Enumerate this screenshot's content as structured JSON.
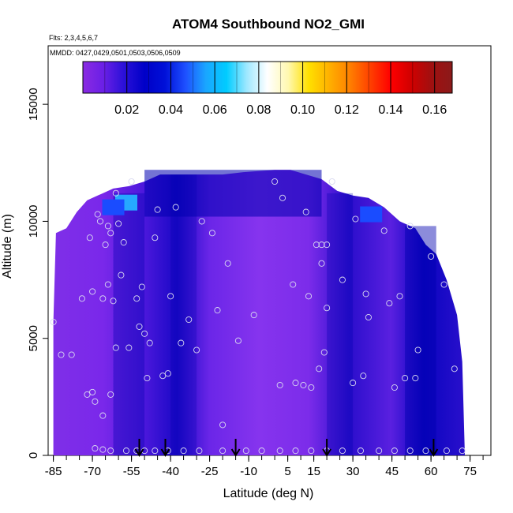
{
  "chart_data": {
    "type": "heatmap",
    "title": "ATOM4 Southbound NO2_GMI",
    "flights_note": "Flts: 2,3,4,5,6,7",
    "dates_note": "MMDD: 0427,0429,0501,0503,0506,0509",
    "xlabel": "Latitude (deg N)",
    "ylabel": "Altitude (m)",
    "xlim": [
      -87,
      83
    ],
    "ylim": [
      0,
      17500
    ],
    "x_ticks": [
      -85,
      -70,
      -55,
      -40,
      -25,
      -10,
      5,
      15,
      30,
      45,
      60,
      75
    ],
    "x_tick_labels": [
      "-85",
      "-70",
      "-55",
      "-40",
      "-25",
      "-10",
      "5",
      "15",
      "30",
      "45",
      "60",
      "75"
    ],
    "y_ticks": [
      0,
      5000,
      10000,
      15000
    ],
    "y_tick_labels": [
      "0",
      "5000",
      "10000",
      "15000"
    ],
    "colorbar": {
      "min": 0.0,
      "max": 0.168,
      "ticks": [
        0.02,
        0.04,
        0.06,
        0.08,
        0.1,
        0.12,
        0.14,
        0.16
      ],
      "tick_labels": [
        "0.02",
        "0.04",
        "0.06",
        "0.08",
        "0.10",
        "0.12",
        "0.14",
        "0.16"
      ],
      "colors": [
        "#8a2be2",
        "#6a1fe6",
        "#2a10d8",
        "#0000c8",
        "#0010d8",
        "#1e50ff",
        "#1aa6ff",
        "#00ccff",
        "#a0e8ff",
        "#ffffff",
        "#fff8b0",
        "#ffe000",
        "#ffb000",
        "#ff8000",
        "#ff4000",
        "#ff0000",
        "#d00000",
        "#a01010",
        "#8b1a1a"
      ]
    },
    "domain_top_altitude": [
      [
        -85,
        5700
      ],
      [
        -84,
        9500
      ],
      [
        -80,
        9700
      ],
      [
        -76,
        10400
      ],
      [
        -72,
        10900
      ],
      [
        -68,
        11100
      ],
      [
        -62,
        11400
      ],
      [
        -56,
        11500
      ],
      [
        -50,
        11700
      ],
      [
        -44,
        12000
      ],
      [
        -36,
        12000
      ],
      [
        -20,
        12000
      ],
      [
        -12,
        12100
      ],
      [
        0,
        12200
      ],
      [
        6,
        12200
      ],
      [
        12,
        12000
      ],
      [
        18,
        11800
      ],
      [
        24,
        11300
      ],
      [
        30,
        11100
      ],
      [
        36,
        11000
      ],
      [
        42,
        10600
      ],
      [
        48,
        10000
      ],
      [
        54,
        9700
      ],
      [
        58,
        9000
      ],
      [
        62,
        8600
      ],
      [
        66,
        7500
      ],
      [
        70,
        6000
      ],
      [
        72,
        4000
      ],
      [
        73,
        0
      ]
    ],
    "high_regions": [
      {
        "lat": -57,
        "alt": 10800,
        "value": 0.05
      },
      {
        "lat": -62,
        "alt": 10600,
        "value": 0.035
      },
      {
        "lat": 37,
        "alt": 10300,
        "value": 0.04
      }
    ],
    "flight_track_points": [
      [
        -85,
        5700
      ],
      [
        -82,
        4300
      ],
      [
        -74,
        6700
      ],
      [
        -71,
        9300
      ],
      [
        -70,
        7000
      ],
      [
        -68,
        10300
      ],
      [
        -67,
        10000
      ],
      [
        -66,
        6700
      ],
      [
        -65,
        9000
      ],
      [
        -64,
        9800
      ],
      [
        -63,
        9500
      ],
      [
        -64,
        7300
      ],
      [
        -62,
        6600
      ],
      [
        -61,
        11200
      ],
      [
        -60,
        9900
      ],
      [
        -59,
        7700
      ],
      [
        -58,
        9100
      ],
      [
        -55,
        11700
      ],
      [
        -53,
        6700
      ],
      [
        -52,
        5500
      ],
      [
        -51,
        7200
      ],
      [
        -49,
        3300
      ],
      [
        -48,
        4800
      ],
      [
        -46,
        9300
      ],
      [
        -45,
        10500
      ],
      [
        -43,
        3400
      ],
      [
        -40,
        6800
      ],
      [
        -38,
        10600
      ],
      [
        -36,
        4800
      ],
      [
        -33,
        5800
      ],
      [
        -30,
        4500
      ],
      [
        -28,
        10000
      ],
      [
        -24,
        9500
      ],
      [
        -22,
        6200
      ],
      [
        -20,
        1300
      ],
      [
        -18,
        8200
      ],
      [
        -14,
        4900
      ],
      [
        -8,
        6000
      ],
      [
        0,
        11700
      ],
      [
        3,
        11000
      ],
      [
        7,
        7300
      ],
      [
        12,
        10400
      ],
      [
        13,
        6800
      ],
      [
        16,
        9000
      ],
      [
        18,
        9000
      ],
      [
        18,
        8200
      ],
      [
        20,
        9000
      ],
      [
        20,
        6300
      ],
      [
        22,
        11700
      ],
      [
        26,
        7500
      ],
      [
        30,
        3100
      ],
      [
        31,
        10100
      ],
      [
        34,
        3400
      ],
      [
        35,
        6900
      ],
      [
        36,
        5900
      ],
      [
        42,
        9600
      ],
      [
        44,
        6500
      ],
      [
        46,
        2900
      ],
      [
        48,
        6800
      ],
      [
        50,
        3300
      ],
      [
        52,
        9800
      ],
      [
        54,
        3300
      ],
      [
        55,
        4500
      ],
      [
        60,
        8500
      ],
      [
        65,
        7300
      ],
      [
        69,
        3700
      ],
      [
        -78,
        4300
      ],
      [
        -72,
        2600
      ],
      [
        -70,
        2700
      ],
      [
        -69,
        2300
      ],
      [
        -66,
        1700
      ],
      [
        -63,
        2600
      ],
      [
        -61,
        4600
      ],
      [
        -56,
        4600
      ],
      [
        -50,
        5200
      ],
      [
        -41,
        3500
      ],
      [
        2,
        3000
      ],
      [
        8,
        3100
      ],
      [
        11,
        3000
      ],
      [
        14,
        2900
      ],
      [
        17,
        3700
      ],
      [
        19,
        4400
      ],
      [
        -69,
        300
      ],
      [
        -66,
        250
      ],
      [
        -63,
        200
      ],
      [
        -57,
        200
      ],
      [
        -53,
        200
      ],
      [
        -50,
        200
      ],
      [
        -46,
        200
      ],
      [
        -41,
        200
      ],
      [
        -35,
        200
      ],
      [
        -29,
        200
      ],
      [
        -20,
        200
      ],
      [
        -11,
        200
      ],
      [
        -5,
        200
      ],
      [
        2,
        200
      ],
      [
        8,
        200
      ],
      [
        14,
        200
      ],
      [
        20,
        200
      ],
      [
        26,
        200
      ],
      [
        33,
        200
      ],
      [
        40,
        200
      ],
      [
        46,
        200
      ],
      [
        52,
        200
      ],
      [
        58,
        200
      ],
      [
        66,
        200
      ],
      [
        72,
        200
      ]
    ],
    "arrow_markers_lat": [
      -52,
      -42,
      -15,
      20,
      61
    ],
    "plot_type": "colored vertical curtain of NO2 concentration with flight sample points and altitude-bin arrows"
  }
}
